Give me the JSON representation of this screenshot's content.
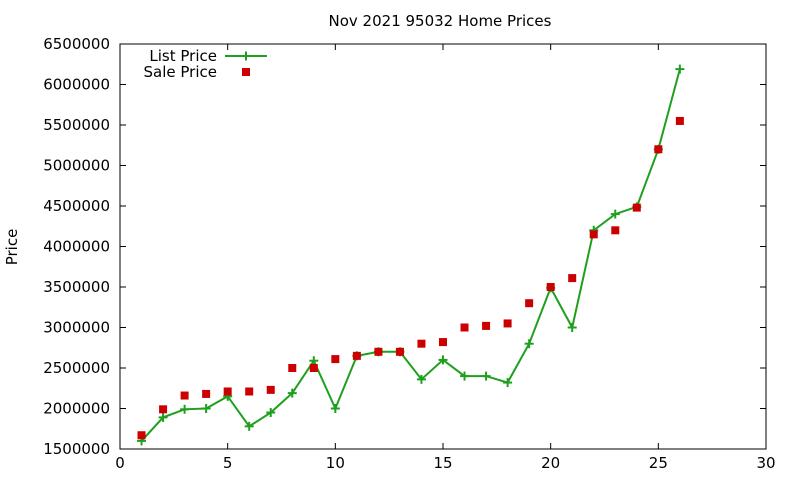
{
  "chart_data": {
    "type": "scatter",
    "title": "Nov 2021 95032 Home Prices",
    "xlabel": "",
    "ylabel": "Price",
    "xlim": [
      0,
      30
    ],
    "ylim": [
      1500000,
      6500000
    ],
    "x_ticks": [
      0,
      5,
      10,
      15,
      20,
      25,
      30
    ],
    "y_ticks": [
      1500000,
      2000000,
      2500000,
      3000000,
      3500000,
      4000000,
      4500000,
      5000000,
      5500000,
      6000000,
      6500000
    ],
    "grid": false,
    "legend_position": "top-left",
    "series": [
      {
        "name": "List Price",
        "style": "line-with-plus-markers",
        "color": "#1ea01e",
        "x": [
          1,
          2,
          3,
          4,
          5,
          6,
          7,
          8,
          9,
          10,
          11,
          12,
          13,
          14,
          15,
          16,
          17,
          18,
          19,
          20,
          21,
          22,
          23,
          24,
          25,
          26
        ],
        "y": [
          1600000,
          1890000,
          1990000,
          2000000,
          2150000,
          1780000,
          1950000,
          2190000,
          2590000,
          2000000,
          2650000,
          2700000,
          2700000,
          2360000,
          2600000,
          2400000,
          2400000,
          2320000,
          2800000,
          3490000,
          3000000,
          4200000,
          4400000,
          4490000,
          5200000,
          6190000
        ]
      },
      {
        "name": "Sale Price",
        "style": "square-markers",
        "color": "#cc0000",
        "x": [
          1,
          2,
          3,
          4,
          5,
          6,
          7,
          8,
          9,
          10,
          11,
          12,
          13,
          14,
          15,
          16,
          17,
          18,
          19,
          20,
          21,
          22,
          23,
          24,
          25,
          26
        ],
        "y": [
          1670000,
          1990000,
          2160000,
          2180000,
          2210000,
          2210000,
          2230000,
          2500000,
          2500000,
          2610000,
          2650000,
          2700000,
          2700000,
          2800000,
          2820000,
          3000000,
          3020000,
          3050000,
          3300000,
          3500000,
          3610000,
          4150000,
          4200000,
          4480000,
          5200000,
          5550000
        ]
      }
    ]
  }
}
